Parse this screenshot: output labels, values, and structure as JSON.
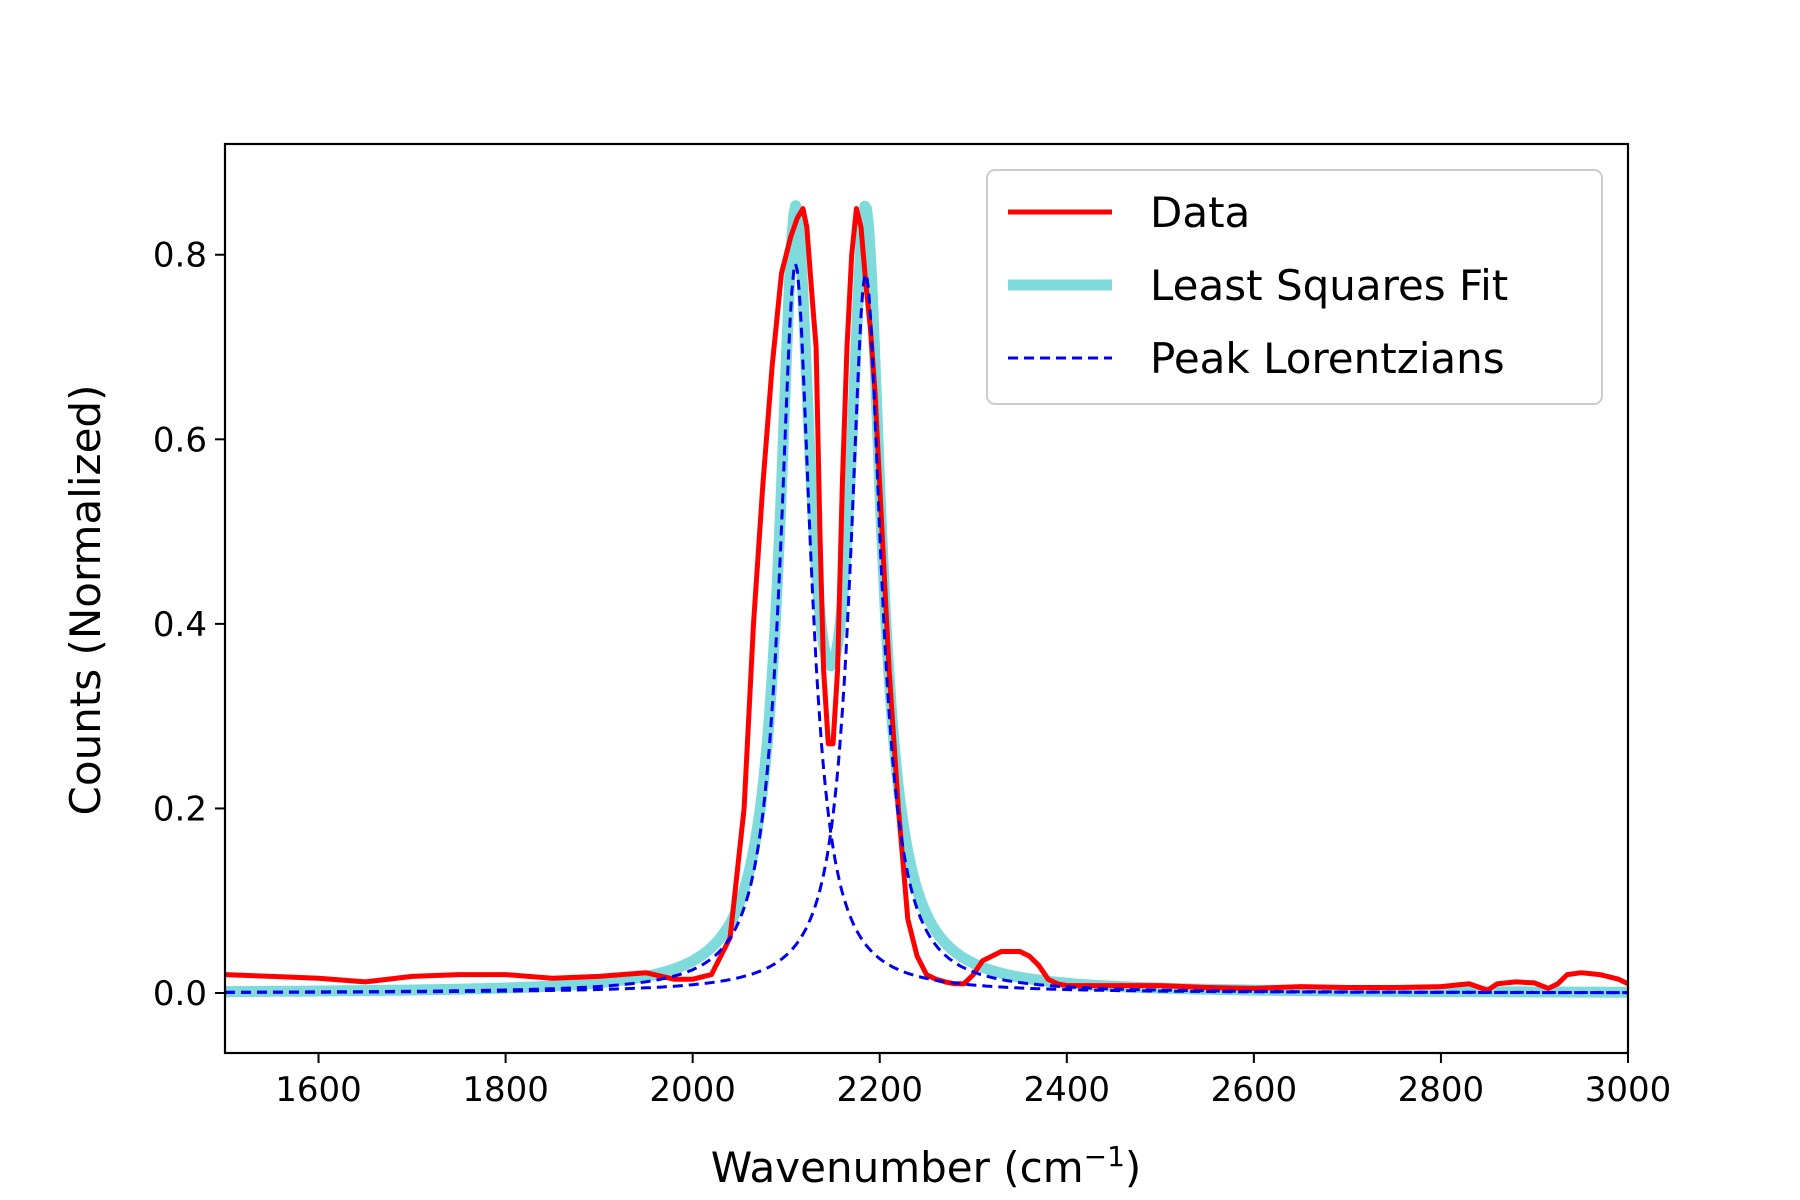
{
  "chart_data": {
    "type": "line",
    "title": "",
    "xlabel": "Wavenumber (cm",
    "xlabel_superscript": "−1",
    "xlabel_suffix": ")",
    "ylabel": "Counts (Normalized)",
    "xlim": [
      1500,
      3000
    ],
    "ylim": [
      -0.065,
      0.92
    ],
    "x_ticks": [
      1600,
      1800,
      2000,
      2200,
      2400,
      2600,
      2800,
      3000
    ],
    "x_tick_labels": [
      "1600",
      "1800",
      "2000",
      "2200",
      "2400",
      "2600",
      "2800",
      "3000"
    ],
    "y_ticks": [
      0.0,
      0.2,
      0.4,
      0.6,
      0.8
    ],
    "y_tick_labels": [
      "0.0",
      "0.2",
      "0.4",
      "0.6",
      "0.8"
    ],
    "grid": false,
    "legend_position": "top-right",
    "series": [
      {
        "name": "Data",
        "color": "#ff0000",
        "style": "solid",
        "x": [
          1500,
          1550,
          1600,
          1650,
          1700,
          1750,
          1800,
          1850,
          1900,
          1950,
          1980,
          2000,
          2020,
          2040,
          2055,
          2065,
          2075,
          2085,
          2095,
          2105,
          2112,
          2118,
          2122,
          2128,
          2132,
          2136,
          2140,
          2145,
          2150,
          2155,
          2160,
          2165,
          2170,
          2175,
          2180,
          2185,
          2190,
          2195,
          2200,
          2210,
          2220,
          2230,
          2240,
          2250,
          2260,
          2270,
          2280,
          2290,
          2300,
          2310,
          2320,
          2330,
          2340,
          2350,
          2360,
          2370,
          2380,
          2390,
          2400,
          2450,
          2500,
          2550,
          2600,
          2650,
          2700,
          2750,
          2800,
          2830,
          2850,
          2860,
          2880,
          2900,
          2915,
          2925,
          2935,
          2950,
          2970,
          2990,
          3000
        ],
        "y": [
          0.02,
          0.018,
          0.016,
          0.012,
          0.018,
          0.02,
          0.02,
          0.016,
          0.018,
          0.022,
          0.015,
          0.015,
          0.02,
          0.06,
          0.2,
          0.4,
          0.55,
          0.68,
          0.78,
          0.82,
          0.84,
          0.85,
          0.83,
          0.75,
          0.7,
          0.5,
          0.35,
          0.27,
          0.27,
          0.35,
          0.55,
          0.7,
          0.8,
          0.85,
          0.83,
          0.77,
          0.72,
          0.65,
          0.55,
          0.35,
          0.2,
          0.08,
          0.04,
          0.02,
          0.015,
          0.012,
          0.01,
          0.01,
          0.02,
          0.035,
          0.04,
          0.045,
          0.045,
          0.045,
          0.04,
          0.03,
          0.015,
          0.01,
          0.008,
          0.008,
          0.008,
          0.006,
          0.005,
          0.007,
          0.006,
          0.006,
          0.007,
          0.01,
          0.003,
          0.01,
          0.012,
          0.011,
          0.005,
          0.01,
          0.02,
          0.022,
          0.02,
          0.015,
          0.01
        ]
      },
      {
        "name": "Least Squares Fit",
        "color": "#7fdbdb",
        "style": "solid",
        "lorentzians": [
          {
            "center": 2110,
            "amplitude": 0.8,
            "hwhm": 20
          },
          {
            "center": 2185,
            "amplitude": 0.8,
            "hwhm": 20
          }
        ],
        "baseline": 0.0
      },
      {
        "name": "Peak Lorentzians",
        "color": "#0000ee",
        "style": "dashed",
        "lorentzians": [
          {
            "center": 2110,
            "amplitude": 0.79,
            "hwhm": 20
          },
          {
            "center": 2185,
            "amplitude": 0.78,
            "hwhm": 20
          }
        ],
        "baseline": 0.0
      }
    ]
  }
}
